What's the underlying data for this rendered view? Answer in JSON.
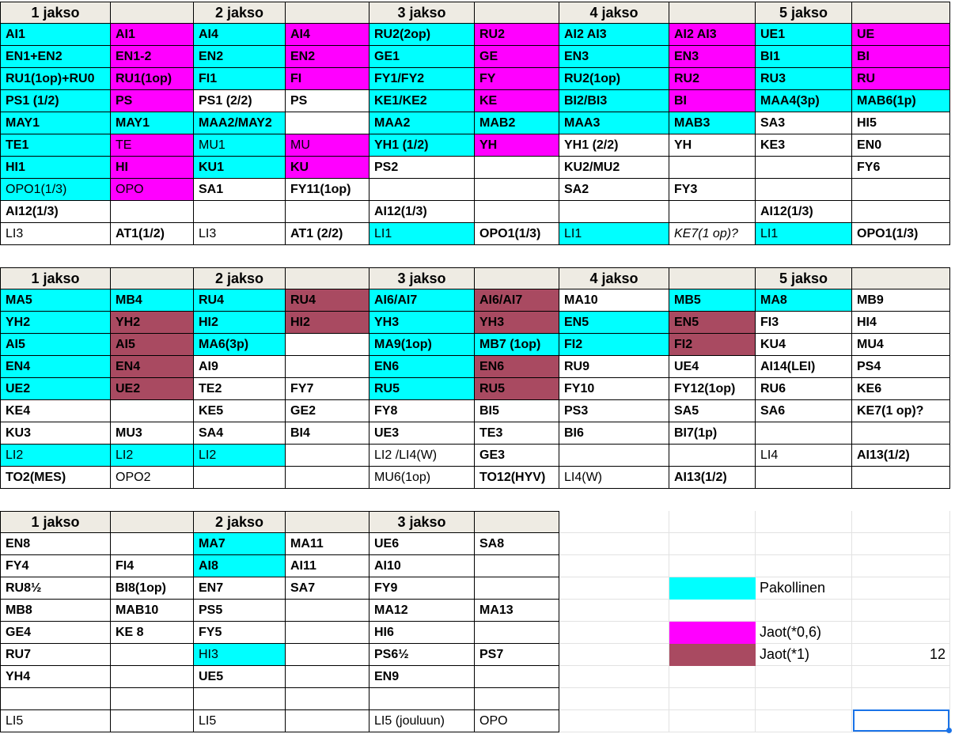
{
  "colors": {
    "pakollinen": "#00ffff",
    "jaot_06": "#ff00ff",
    "jaot_1": "#a94a61",
    "header_bg": "#eeebe3"
  },
  "headers": {
    "j1": "1 jakso",
    "j2": "2 jakso",
    "j3": "3 jakso",
    "j4": "4 jakso",
    "j5": "5 jakso"
  },
  "block1": [
    [
      [
        "AI1",
        "c",
        1
      ],
      [
        "AI1",
        "m",
        1
      ],
      [
        "AI4",
        "c",
        1
      ],
      [
        "AI4",
        "m",
        1
      ],
      [
        "RU2(2op)",
        "c",
        1
      ],
      [
        "RU2",
        "m",
        1
      ],
      [
        "AI2 AI3",
        "c",
        1
      ],
      [
        "AI2 AI3",
        "m",
        1
      ],
      [
        "UE1",
        "c",
        1
      ],
      [
        "UE",
        "m",
        1
      ]
    ],
    [
      [
        "EN1+EN2",
        "c",
        1
      ],
      [
        "EN1-2",
        "m",
        1
      ],
      [
        "EN2",
        "c",
        1
      ],
      [
        "EN2",
        "m",
        1
      ],
      [
        "GE1",
        "c",
        1
      ],
      [
        "GE",
        "m",
        1
      ],
      [
        "EN3",
        "c",
        1
      ],
      [
        "EN3",
        "m",
        1
      ],
      [
        "BI1",
        "c",
        1
      ],
      [
        "BI",
        "m",
        1
      ]
    ],
    [
      [
        "RU1(1op)+RU0",
        "c",
        1
      ],
      [
        "RU1(1op)",
        "m",
        1
      ],
      [
        "FI1",
        "c",
        1
      ],
      [
        "FI",
        "m",
        1
      ],
      [
        "FY1/FY2",
        "c",
        1
      ],
      [
        "FY",
        "m",
        1
      ],
      [
        "RU2(1op)",
        "c",
        1
      ],
      [
        "RU2",
        "m",
        1
      ],
      [
        "RU3",
        "c",
        1
      ],
      [
        "RU",
        "m",
        1
      ]
    ],
    [
      [
        "PS1 (1/2)",
        "c",
        1
      ],
      [
        "PS",
        "m",
        1
      ],
      [
        "PS1 (2/2)",
        "",
        1
      ],
      [
        "PS",
        "",
        1
      ],
      [
        "KE1/KE2",
        "c",
        1
      ],
      [
        "KE",
        "m",
        1
      ],
      [
        "BI2/BI3",
        "c",
        1
      ],
      [
        "BI",
        "m",
        1
      ],
      [
        "MAA4(3p)",
        "c",
        1
      ],
      [
        "MAB6(1p)",
        "c",
        1
      ]
    ],
    [
      [
        "MAY1",
        "c",
        1
      ],
      [
        "MAY1",
        "c",
        1
      ],
      [
        "MAA2/MAY2",
        "c",
        1
      ],
      [
        "",
        "",
        0
      ],
      [
        "MAA2",
        "c",
        1
      ],
      [
        "MAB2",
        "c",
        1
      ],
      [
        "MAA3",
        "c",
        1
      ],
      [
        "MAB3",
        "c",
        1
      ],
      [
        "SA3",
        "",
        1
      ],
      [
        "HI5",
        "",
        1
      ]
    ],
    [
      [
        "TE1",
        "c",
        1
      ],
      [
        "TE",
        "m",
        0
      ],
      [
        "MU1",
        "c",
        0
      ],
      [
        "MU",
        "m",
        0
      ],
      [
        "YH1 (1/2)",
        "c",
        1
      ],
      [
        "YH",
        "m",
        1
      ],
      [
        "YH1 (2/2)",
        "",
        1
      ],
      [
        "YH",
        "",
        1
      ],
      [
        "KE3",
        "",
        1
      ],
      [
        "EN0",
        "",
        1
      ]
    ],
    [
      [
        "HI1",
        "c",
        1
      ],
      [
        "HI",
        "m",
        1
      ],
      [
        "KU1",
        "c",
        1
      ],
      [
        "KU",
        "m",
        1
      ],
      [
        "PS2",
        "",
        1
      ],
      [
        "",
        "",
        0
      ],
      [
        "KU2/MU2",
        "",
        1
      ],
      [
        "",
        "",
        0
      ],
      [
        "",
        "",
        0
      ],
      [
        "FY6",
        "",
        1
      ]
    ],
    [
      [
        "OPO1(1/3)",
        "c",
        0
      ],
      [
        "OPO",
        "m",
        0
      ],
      [
        "SA1",
        "",
        1
      ],
      [
        "FY11(1op)",
        "",
        1
      ],
      [
        "",
        "",
        0
      ],
      [
        "",
        "",
        0
      ],
      [
        "SA2",
        "",
        1
      ],
      [
        "FY3",
        "",
        1
      ],
      [
        "",
        "",
        0
      ],
      [
        "",
        "",
        0
      ]
    ],
    [
      [
        "AI12(1/3)",
        "",
        1
      ],
      [
        "",
        "",
        0
      ],
      [
        "",
        "",
        0
      ],
      [
        "",
        "",
        0
      ],
      [
        "AI12(1/3)",
        "",
        1
      ],
      [
        "",
        "",
        0
      ],
      [
        "",
        "",
        0
      ],
      [
        "",
        "",
        0
      ],
      [
        "AI12(1/3)",
        "",
        1
      ],
      [
        "",
        "",
        0
      ]
    ],
    [
      [
        "LI3",
        "",
        0
      ],
      [
        "AT1(1/2)",
        "",
        1
      ],
      [
        "LI3",
        "",
        0
      ],
      [
        "AT1 (2/2)",
        "",
        1
      ],
      [
        "LI1",
        "c",
        0
      ],
      [
        "OPO1(1/3)",
        "",
        1
      ],
      [
        "LI1",
        "c",
        0
      ],
      [
        "KE7(1 op)?",
        "",
        2
      ],
      [
        "LI1",
        "c",
        0
      ],
      [
        "OPO1(1/3)",
        "",
        1
      ]
    ]
  ],
  "block2": [
    [
      [
        "MA5",
        "c",
        1
      ],
      [
        "MB4",
        "c",
        1
      ],
      [
        "RU4",
        "c",
        1
      ],
      [
        "RU4",
        "r",
        1
      ],
      [
        "AI6/AI7",
        "c",
        1
      ],
      [
        "AI6/AI7",
        "r",
        1
      ],
      [
        "MA10",
        "",
        1
      ],
      [
        "MB5",
        "c",
        1
      ],
      [
        "MA8",
        "c",
        1
      ],
      [
        "MB9",
        "",
        1
      ]
    ],
    [
      [
        "YH2",
        "c",
        1
      ],
      [
        "YH2",
        "r",
        1
      ],
      [
        "HI2",
        "c",
        1
      ],
      [
        "HI2",
        "r",
        1
      ],
      [
        "YH3",
        "c",
        1
      ],
      [
        "YH3",
        "r",
        1
      ],
      [
        "EN5",
        "c",
        1
      ],
      [
        "EN5",
        "r",
        1
      ],
      [
        "FI3",
        "",
        1
      ],
      [
        "HI4",
        "",
        1
      ]
    ],
    [
      [
        "AI5",
        "c",
        1
      ],
      [
        "AI5",
        "r",
        1
      ],
      [
        "MA6(3p)",
        "c",
        1
      ],
      [
        "",
        "",
        0
      ],
      [
        "MA9(1op)",
        "c",
        1
      ],
      [
        "MB7 (1op)",
        "c",
        1
      ],
      [
        "FI2",
        "c",
        1
      ],
      [
        "FI2",
        "r",
        1
      ],
      [
        "KU4",
        "",
        1
      ],
      [
        "MU4",
        "",
        1
      ]
    ],
    [
      [
        "EN4",
        "c",
        1
      ],
      [
        "EN4",
        "r",
        1
      ],
      [
        "AI9",
        "",
        1
      ],
      [
        "",
        "",
        0
      ],
      [
        "EN6",
        "c",
        1
      ],
      [
        "EN6",
        "r",
        1
      ],
      [
        "RU9",
        "",
        1
      ],
      [
        "UE4",
        "",
        1
      ],
      [
        "AI14(LEI)",
        "",
        1
      ],
      [
        "PS4",
        "",
        1
      ]
    ],
    [
      [
        "UE2",
        "c",
        1
      ],
      [
        "UE2",
        "r",
        1
      ],
      [
        "TE2",
        "",
        1
      ],
      [
        "FY7",
        "",
        1
      ],
      [
        "RU5",
        "c",
        1
      ],
      [
        "RU5",
        "r",
        1
      ],
      [
        "FY10",
        "",
        1
      ],
      [
        "FY12(1op)",
        "",
        1
      ],
      [
        "RU6",
        "",
        1
      ],
      [
        "KE6",
        "",
        1
      ]
    ],
    [
      [
        "KE4",
        "",
        1
      ],
      [
        "",
        "",
        0
      ],
      [
        "KE5",
        "",
        1
      ],
      [
        "GE2",
        "",
        1
      ],
      [
        "FY8",
        "",
        1
      ],
      [
        "BI5",
        "",
        1
      ],
      [
        "PS3",
        "",
        1
      ],
      [
        "SA5",
        "",
        1
      ],
      [
        "SA6",
        "",
        1
      ],
      [
        "KE7(1 op)?",
        "",
        1
      ]
    ],
    [
      [
        "KU3",
        "",
        1
      ],
      [
        "MU3",
        "",
        1
      ],
      [
        "SA4",
        "",
        1
      ],
      [
        "BI4",
        "",
        1
      ],
      [
        "UE3",
        "",
        1
      ],
      [
        "TE3",
        "",
        1
      ],
      [
        "BI6",
        "",
        1
      ],
      [
        "BI7(1p)",
        "",
        1
      ],
      [
        "",
        "",
        0
      ],
      [
        "",
        "",
        0
      ]
    ],
    [
      [
        "LI2",
        "c",
        0
      ],
      [
        "LI2",
        "c",
        0
      ],
      [
        "LI2",
        "c",
        0
      ],
      [
        "",
        "",
        0
      ],
      [
        "LI2  /LI4(W)",
        "",
        0
      ],
      [
        "GE3",
        "",
        1
      ],
      [
        "",
        "",
        0
      ],
      [
        "",
        "",
        0
      ],
      [
        "LI4",
        "",
        0
      ],
      [
        "AI13(1/2)",
        "",
        1
      ]
    ],
    [
      [
        "TO2(MES)",
        "",
        1
      ],
      [
        "OPO2",
        "",
        0
      ],
      [
        "",
        "",
        0
      ],
      [
        "",
        "",
        0
      ],
      [
        "MU6(1op)",
        "",
        0
      ],
      [
        "TO12(HYV)",
        "",
        1
      ],
      [
        "LI4(W)",
        "",
        0
      ],
      [
        "AI13(1/2)",
        "",
        1
      ],
      [
        "",
        "",
        0
      ],
      [
        "",
        "",
        0
      ]
    ]
  ],
  "block3": [
    [
      [
        "EN8",
        "",
        1
      ],
      [
        "",
        "",
        0
      ],
      [
        "MA7",
        "c",
        1
      ],
      [
        "MA11",
        "",
        1
      ],
      [
        "UE6",
        "",
        1
      ],
      [
        "SA8",
        "",
        1
      ]
    ],
    [
      [
        "FY4",
        "",
        1
      ],
      [
        "FI4",
        "",
        1
      ],
      [
        "AI8",
        "c",
        1
      ],
      [
        "AI11",
        "",
        1
      ],
      [
        "AI10",
        "",
        1
      ],
      [
        "",
        "",
        0
      ]
    ],
    [
      [
        "RU8½",
        "",
        1
      ],
      [
        "BI8(1op)",
        "",
        1
      ],
      [
        "EN7",
        "",
        1
      ],
      [
        "SA7",
        "",
        1
      ],
      [
        "FY9",
        "",
        1
      ],
      [
        "",
        "",
        0
      ]
    ],
    [
      [
        "MB8",
        "",
        1
      ],
      [
        "MAB10",
        "",
        1
      ],
      [
        "PS5",
        "",
        1
      ],
      [
        "",
        "",
        0
      ],
      [
        "MA12",
        "",
        1
      ],
      [
        "MA13",
        "",
        1
      ]
    ],
    [
      [
        "GE4",
        "",
        1
      ],
      [
        "KE 8",
        "",
        1
      ],
      [
        "FY5",
        "",
        1
      ],
      [
        "",
        "",
        0
      ],
      [
        "HI6",
        "",
        1
      ],
      [
        "",
        "",
        0
      ]
    ],
    [
      [
        "RU7",
        "",
        1
      ],
      [
        "",
        "",
        0
      ],
      [
        "HI3",
        "c",
        0
      ],
      [
        "",
        "",
        0
      ],
      [
        "PS6½",
        "",
        1
      ],
      [
        "PS7",
        "",
        1
      ]
    ],
    [
      [
        "YH4",
        "",
        1
      ],
      [
        "",
        "",
        0
      ],
      [
        "UE5",
        "",
        1
      ],
      [
        "",
        "",
        0
      ],
      [
        "EN9",
        "",
        1
      ],
      [
        "",
        "",
        0
      ]
    ],
    [
      [
        "",
        "",
        0
      ],
      [
        "",
        "",
        0
      ],
      [
        "",
        "",
        0
      ],
      [
        "",
        "",
        0
      ],
      [
        "",
        "",
        0
      ],
      [
        "",
        "",
        0
      ]
    ],
    [
      [
        "LI5",
        "",
        0
      ],
      [
        "",
        "",
        0
      ],
      [
        "LI5",
        "",
        0
      ],
      [
        "",
        "",
        0
      ],
      [
        "LI5 (jouluun)",
        "",
        0
      ],
      [
        "OPO",
        "",
        0
      ]
    ]
  ],
  "legend": {
    "pakollinen": "Pakollinen",
    "jaot_06": "Jaot(*0,6)",
    "jaot_1": "Jaot(*1)",
    "count": "12"
  }
}
